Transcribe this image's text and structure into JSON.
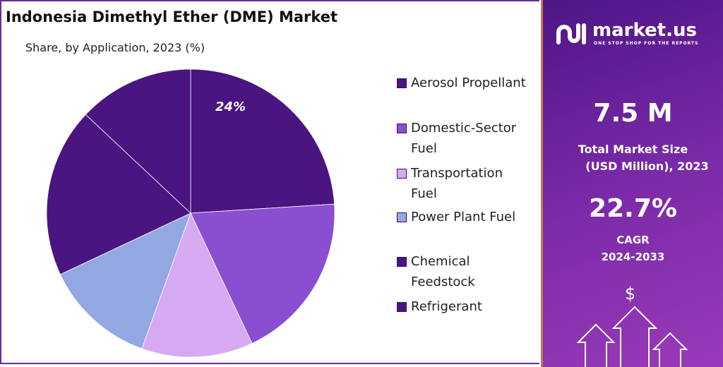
{
  "chart_data": {
    "type": "pie",
    "title": "Indonesia Dimethyl Ether (DME) Market",
    "subtitle": "Share, by Application, 2023 (%)",
    "slices": [
      {
        "label": "Aerosol Propellant",
        "value": 24,
        "color": "#4a1580",
        "data_label": "24%"
      },
      {
        "label": "Domestic-Sector Fuel",
        "value": 19,
        "color": "#8a4fd0"
      },
      {
        "label": "Transportation Fuel",
        "value": 12.5,
        "color": "#d6aaf2"
      },
      {
        "label": "Power Plant Fuel",
        "value": 12.5,
        "color": "#93a8e2"
      },
      {
        "label": "Chemical Feedstock",
        "value": 19,
        "color": "#4a1580"
      },
      {
        "label": "Refrigerant",
        "value": 13,
        "color": "#4a1580"
      }
    ],
    "legend_position": "right"
  },
  "legend": [
    {
      "l1": "Aerosol Propellant",
      "l2": ""
    },
    {
      "l1": "Domestic-Sector",
      "l2": "Fuel"
    },
    {
      "l1": "Transportation",
      "l2": "Fuel"
    },
    {
      "l1": "Power Plant Fuel",
      "l2": ""
    },
    {
      "l1": "Chemical",
      "l2": "Feedstock"
    },
    {
      "l1": "Refrigerant",
      "l2": ""
    }
  ],
  "panel": {
    "brand": "market.us",
    "tagline": "ONE STOP SHOP FOR THE REPORTS",
    "market_size": "7.5 M",
    "market_size_label1": "Total Market Size",
    "market_size_label2": "(USD Million), 2023",
    "cagr": "22.7%",
    "cagr_label1": "CAGR",
    "cagr_label2": "2024-2033",
    "currency_symbol": "$"
  }
}
